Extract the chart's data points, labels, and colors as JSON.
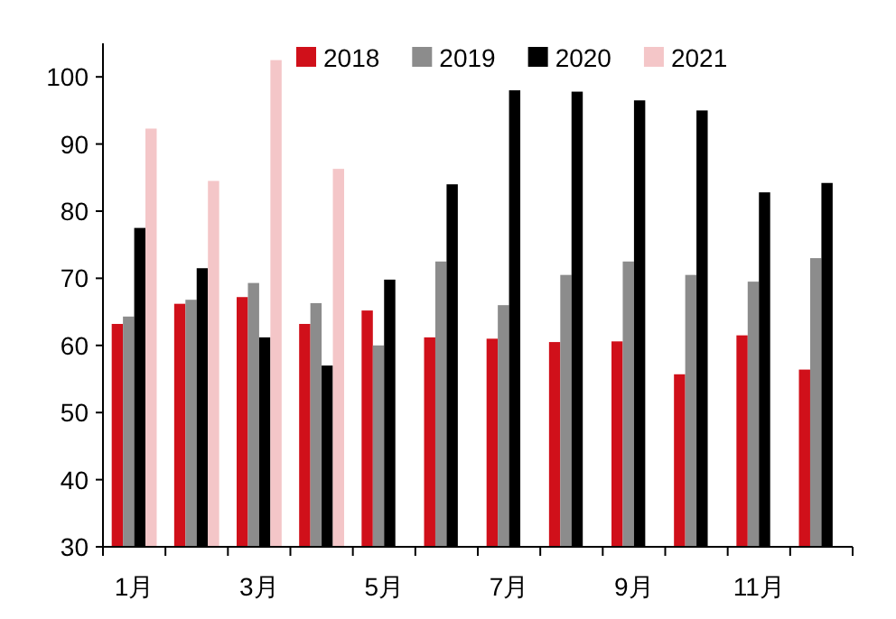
{
  "chart_data": {
    "type": "bar",
    "categories": [
      "1月",
      null,
      "3月",
      null,
      "5月",
      null,
      "7月",
      null,
      "9月",
      null,
      "11月",
      null
    ],
    "series": [
      {
        "name": "2018",
        "color": "#d0101a",
        "values": [
          63.2,
          66.2,
          67.2,
          63.2,
          65.2,
          61.2,
          61,
          60.5,
          60.6,
          55.7,
          61.5,
          56.4
        ]
      },
      {
        "name": "2019",
        "color": "#8c8c8c",
        "values": [
          64.3,
          66.8,
          69.3,
          66.3,
          60,
          72.5,
          66,
          70.5,
          72.5,
          70.5,
          69.5,
          73
        ]
      },
      {
        "name": "2020",
        "color": "#000000",
        "values": [
          77.5,
          71.5,
          61.2,
          57,
          69.8,
          84,
          98,
          97.8,
          96.5,
          95,
          82.8,
          84.2
        ]
      },
      {
        "name": "2021",
        "color": "#f4c6c8",
        "values": [
          92.3,
          84.5,
          102.5,
          86.3,
          null,
          null,
          null,
          null,
          null,
          null,
          null,
          null
        ]
      }
    ],
    "ylim": [
      30,
      105
    ],
    "yticks": [
      30,
      40,
      50,
      60,
      70,
      80,
      90,
      100
    ],
    "legend": "top",
    "grid": false
  }
}
